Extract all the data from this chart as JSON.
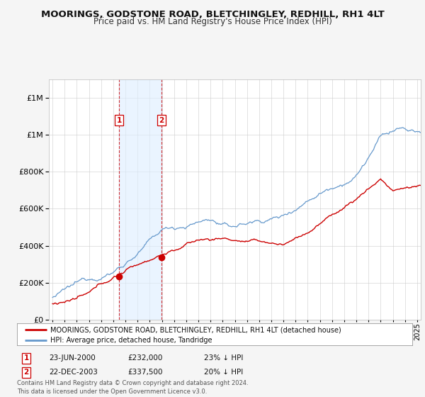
{
  "title": "MOORINGS, GODSTONE ROAD, BLETCHINGLEY, REDHILL, RH1 4LT",
  "subtitle": "Price paid vs. HM Land Registry's House Price Index (HPI)",
  "legend_line1": "MOORINGS, GODSTONE ROAD, BLETCHINGLEY, REDHILL, RH1 4LT (detached house)",
  "legend_line2": "HPI: Average price, detached house, Tandridge",
  "sale1_label": "1",
  "sale1_date": "23-JUN-2000",
  "sale1_price": "£232,000",
  "sale1_note": "23% ↓ HPI",
  "sale2_label": "2",
  "sale2_date": "22-DEC-2003",
  "sale2_price": "£337,500",
  "sale2_note": "20% ↓ HPI",
  "footer": "Contains HM Land Registry data © Crown copyright and database right 2024.\nThis data is licensed under the Open Government Licence v3.0.",
  "red_color": "#cc0000",
  "blue_color": "#6699cc",
  "shade_color": "#ddeeff",
  "background_color": "#f5f5f5",
  "plot_bg_color": "#ffffff",
  "ylim": [
    0,
    1300000
  ],
  "yticks": [
    0,
    200000,
    400000,
    600000,
    800000,
    1000000,
    1200000
  ],
  "sale1_x": 2000.47,
  "sale1_y": 232000,
  "sale2_x": 2003.97,
  "sale2_y": 337500,
  "xmin": 1994.7,
  "xmax": 2025.3
}
